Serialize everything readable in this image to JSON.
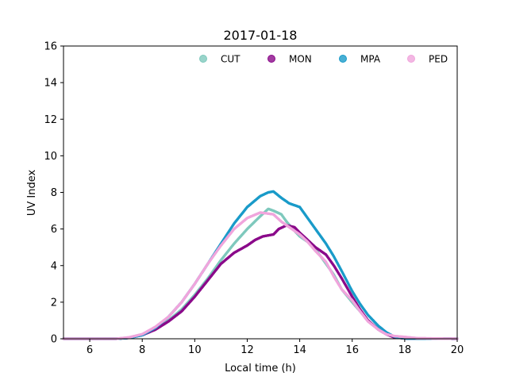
{
  "chart_data": {
    "type": "scatter",
    "title": "2017-01-18",
    "xlabel": "Local time (h)",
    "ylabel": "UV Index",
    "xlim": [
      5,
      20
    ],
    "ylim": [
      0,
      16
    ],
    "xticks": [
      6,
      8,
      10,
      12,
      14,
      16,
      18,
      20
    ],
    "yticks": [
      0,
      2,
      4,
      6,
      8,
      10,
      12,
      14,
      16
    ],
    "grid": false,
    "legend_position": "top-right",
    "series": [
      {
        "name": "CUT",
        "color": "#7fc9bd",
        "points": [
          [
            5,
            0
          ],
          [
            7,
            0
          ],
          [
            7.5,
            0.05
          ],
          [
            8,
            0.2
          ],
          [
            8.5,
            0.55
          ],
          [
            9,
            1.0
          ],
          [
            9.5,
            1.6
          ],
          [
            10,
            2.4
          ],
          [
            10.5,
            3.3
          ],
          [
            11,
            4.3
          ],
          [
            11.5,
            5.2
          ],
          [
            12,
            6.0
          ],
          [
            12.5,
            6.7
          ],
          [
            12.8,
            7.1
          ],
          [
            13,
            7.0
          ],
          [
            13.3,
            6.8
          ],
          [
            13.5,
            6.4
          ],
          [
            13.8,
            5.9
          ],
          [
            14,
            5.6
          ],
          [
            14.3,
            5.3
          ],
          [
            14.6,
            4.9
          ],
          [
            15,
            4.1
          ],
          [
            15.3,
            3.5
          ],
          [
            15.6,
            2.7
          ],
          [
            16,
            2.0
          ],
          [
            16.3,
            1.5
          ],
          [
            16.6,
            1.0
          ],
          [
            17,
            0.5
          ],
          [
            17.3,
            0.25
          ],
          [
            17.6,
            0.1
          ],
          [
            18,
            0.02
          ],
          [
            20,
            0
          ]
        ]
      },
      {
        "name": "MON",
        "color": "#8b0a8a",
        "points": [
          [
            5,
            0
          ],
          [
            7,
            0
          ],
          [
            7.5,
            0.05
          ],
          [
            8,
            0.2
          ],
          [
            8.5,
            0.5
          ],
          [
            9,
            0.95
          ],
          [
            9.5,
            1.5
          ],
          [
            10,
            2.3
          ],
          [
            10.5,
            3.2
          ],
          [
            11,
            4.1
          ],
          [
            11.5,
            4.7
          ],
          [
            12,
            5.1
          ],
          [
            12.3,
            5.4
          ],
          [
            12.6,
            5.6
          ],
          [
            13,
            5.7
          ],
          [
            13.2,
            6.0
          ],
          [
            13.5,
            6.2
          ],
          [
            13.8,
            6.1
          ],
          [
            14,
            5.8
          ],
          [
            14.3,
            5.4
          ],
          [
            14.6,
            5.0
          ],
          [
            15,
            4.6
          ],
          [
            15.3,
            4.0
          ],
          [
            15.6,
            3.3
          ],
          [
            16,
            2.3
          ],
          [
            16.3,
            1.6
          ],
          [
            16.6,
            1.0
          ],
          [
            17,
            0.5
          ],
          [
            17.3,
            0.25
          ],
          [
            17.6,
            0.08
          ],
          [
            18,
            0.02
          ],
          [
            20,
            0
          ]
        ]
      },
      {
        "name": "MPA",
        "color": "#1a9bc9",
        "points": [
          [
            5,
            0
          ],
          [
            7,
            0
          ],
          [
            7.5,
            0.05
          ],
          [
            8,
            0.2
          ],
          [
            8.5,
            0.6
          ],
          [
            9,
            1.2
          ],
          [
            9.5,
            2.0
          ],
          [
            10,
            3.0
          ],
          [
            10.5,
            4.1
          ],
          [
            11,
            5.2
          ],
          [
            11.5,
            6.3
          ],
          [
            12,
            7.2
          ],
          [
            12.5,
            7.8
          ],
          [
            12.8,
            8.0
          ],
          [
            13,
            8.05
          ],
          [
            13.3,
            7.7
          ],
          [
            13.6,
            7.4
          ],
          [
            14,
            7.2
          ],
          [
            14.3,
            6.6
          ],
          [
            14.6,
            6.0
          ],
          [
            15,
            5.2
          ],
          [
            15.3,
            4.5
          ],
          [
            15.6,
            3.7
          ],
          [
            16,
            2.6
          ],
          [
            16.3,
            1.9
          ],
          [
            16.6,
            1.3
          ],
          [
            17,
            0.7
          ],
          [
            17.3,
            0.35
          ],
          [
            17.6,
            0.12
          ],
          [
            18,
            0.02
          ],
          [
            20,
            0
          ]
        ]
      },
      {
        "name": "PED",
        "color": "#f0a5dc",
        "points": [
          [
            5,
            0
          ],
          [
            7,
            0
          ],
          [
            7.5,
            0.08
          ],
          [
            8,
            0.25
          ],
          [
            8.5,
            0.65
          ],
          [
            9,
            1.2
          ],
          [
            9.5,
            2.0
          ],
          [
            10,
            3.0
          ],
          [
            10.5,
            4.1
          ],
          [
            11,
            5.1
          ],
          [
            11.5,
            6.0
          ],
          [
            12,
            6.6
          ],
          [
            12.5,
            6.9
          ],
          [
            13,
            6.8
          ],
          [
            13.3,
            6.4
          ],
          [
            13.6,
            6.1
          ],
          [
            14,
            5.7
          ],
          [
            14.3,
            5.3
          ],
          [
            14.6,
            4.8
          ],
          [
            15,
            4.2
          ],
          [
            15.3,
            3.4
          ],
          [
            15.6,
            2.7
          ],
          [
            16,
            2.1
          ],
          [
            16.3,
            1.5
          ],
          [
            16.6,
            0.95
          ],
          [
            17,
            0.5
          ],
          [
            17.3,
            0.25
          ],
          [
            17.6,
            0.15
          ],
          [
            18,
            0.1
          ],
          [
            18.5,
            0.03
          ],
          [
            20,
            0
          ]
        ]
      }
    ]
  }
}
